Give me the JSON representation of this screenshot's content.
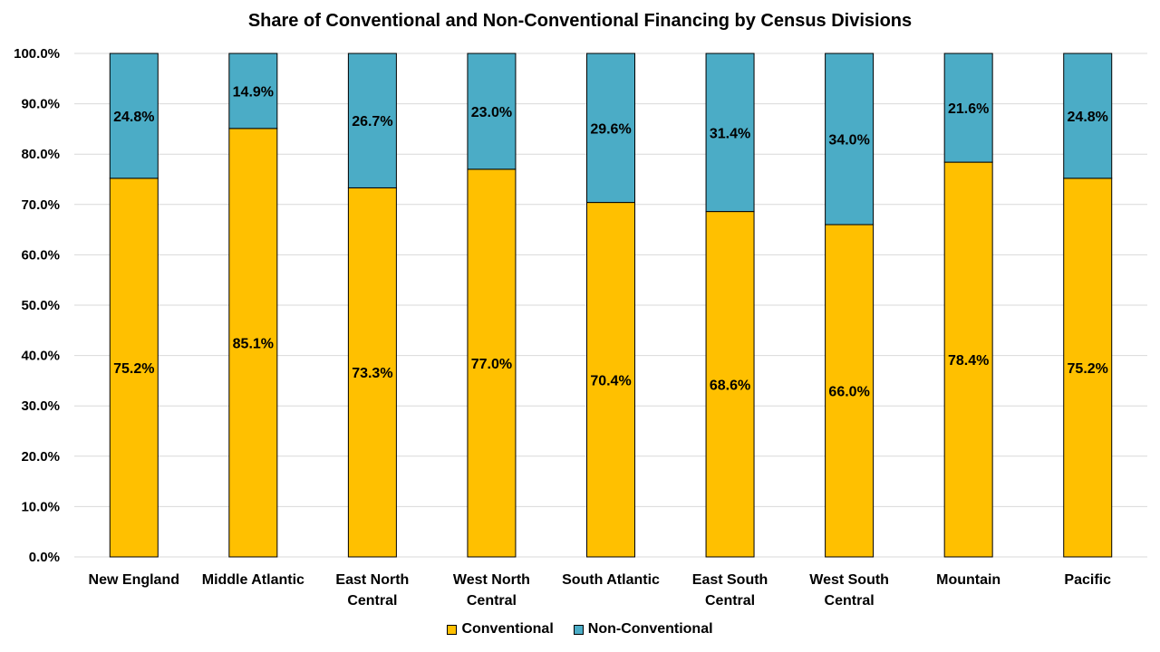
{
  "chart_data": {
    "type": "bar",
    "stacked": true,
    "title": "Share of Conventional and Non-Conventional Financing by Census Divisions",
    "xlabel": "",
    "ylabel": "",
    "ylim": [
      0,
      100
    ],
    "y_ticks": [
      "0.0%",
      "10.0%",
      "20.0%",
      "30.0%",
      "40.0%",
      "50.0%",
      "60.0%",
      "70.0%",
      "80.0%",
      "90.0%",
      "100.0%"
    ],
    "grid": true,
    "legend_position": "bottom",
    "categories": [
      [
        "New England"
      ],
      [
        "Middle Atlantic"
      ],
      [
        "East North",
        "Central"
      ],
      [
        "West North",
        "Central"
      ],
      [
        "South Atlantic"
      ],
      [
        "East South",
        "Central"
      ],
      [
        "West South",
        "Central"
      ],
      [
        "Mountain"
      ],
      [
        "Pacific"
      ]
    ],
    "series": [
      {
        "name": "Conventional",
        "color": "#FFC000",
        "values": [
          75.2,
          85.1,
          73.3,
          77.0,
          70.4,
          68.6,
          66.0,
          78.4,
          75.2
        ],
        "labels": [
          "75.2%",
          "85.1%",
          "73.3%",
          "77.0%",
          "70.4%",
          "68.6%",
          "66.0%",
          "78.4%",
          "75.2%"
        ]
      },
      {
        "name": "Non-Conventional",
        "color": "#4BACC6",
        "values": [
          24.8,
          14.9,
          26.7,
          23.0,
          29.6,
          31.4,
          34.0,
          21.6,
          24.8
        ],
        "labels": [
          "24.8%",
          "14.9%",
          "26.7%",
          "23.0%",
          "29.6%",
          "31.4%",
          "34.0%",
          "21.6%",
          "24.8%"
        ]
      }
    ]
  }
}
